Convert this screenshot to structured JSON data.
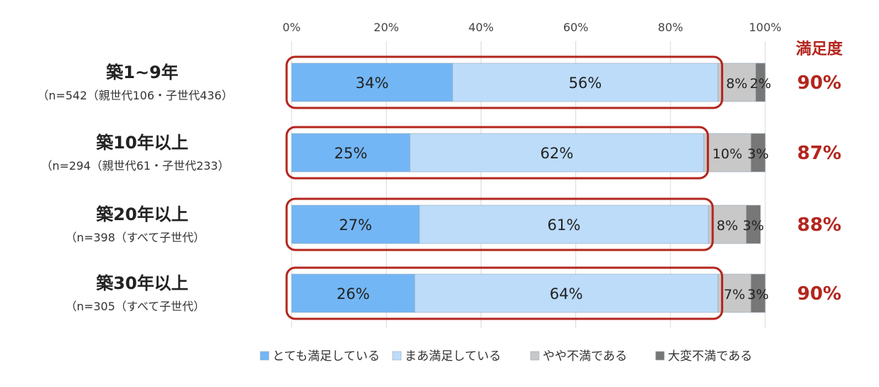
{
  "chart_data": {
    "type": "bar",
    "stacked": true,
    "orientation": "horizontal",
    "xlim": [
      0,
      100
    ],
    "x_ticks": [
      "0%",
      "20%",
      "40%",
      "60%",
      "80%",
      "100%"
    ],
    "categories": [
      {
        "label": "築1~9年",
        "sublabel": "（n=542（親世代106・子世代436）"
      },
      {
        "label": "築10年以上",
        "sublabel": "（n=294（親世代61・子世代233）"
      },
      {
        "label": "築20年以上",
        "sublabel": "（n=398（すべて子世代）"
      },
      {
        "label": "築30年以上",
        "sublabel": "（n=305（すべて子世代）"
      }
    ],
    "series": [
      {
        "name": "とても満足している",
        "values": [
          34,
          25,
          27,
          26
        ],
        "labels": [
          "34%",
          "25%",
          "27%",
          "26%"
        ],
        "color": "#73b6f5"
      },
      {
        "name": "まあ満足している",
        "values": [
          56,
          62,
          61,
          64
        ],
        "labels": [
          "56%",
          "62%",
          "61%",
          "64%"
        ],
        "color": "#bcdcfa"
      },
      {
        "name": "やや不満である",
        "values": [
          8,
          10,
          8,
          7
        ],
        "labels": [
          "8%",
          "10%",
          "8%",
          "7%"
        ],
        "color": "#c8c8c8"
      },
      {
        "name": "大変不満である",
        "values": [
          2,
          3,
          3,
          3
        ],
        "labels": [
          "2%",
          "3%",
          "3%",
          "3%"
        ],
        "color": "#777777"
      }
    ],
    "satisfaction_header": "満足度",
    "satisfaction": [
      "90%",
      "87%",
      "88%",
      "90%"
    ],
    "highlight_color": "#b3261e",
    "grid": true,
    "legend_position": "bottom"
  }
}
